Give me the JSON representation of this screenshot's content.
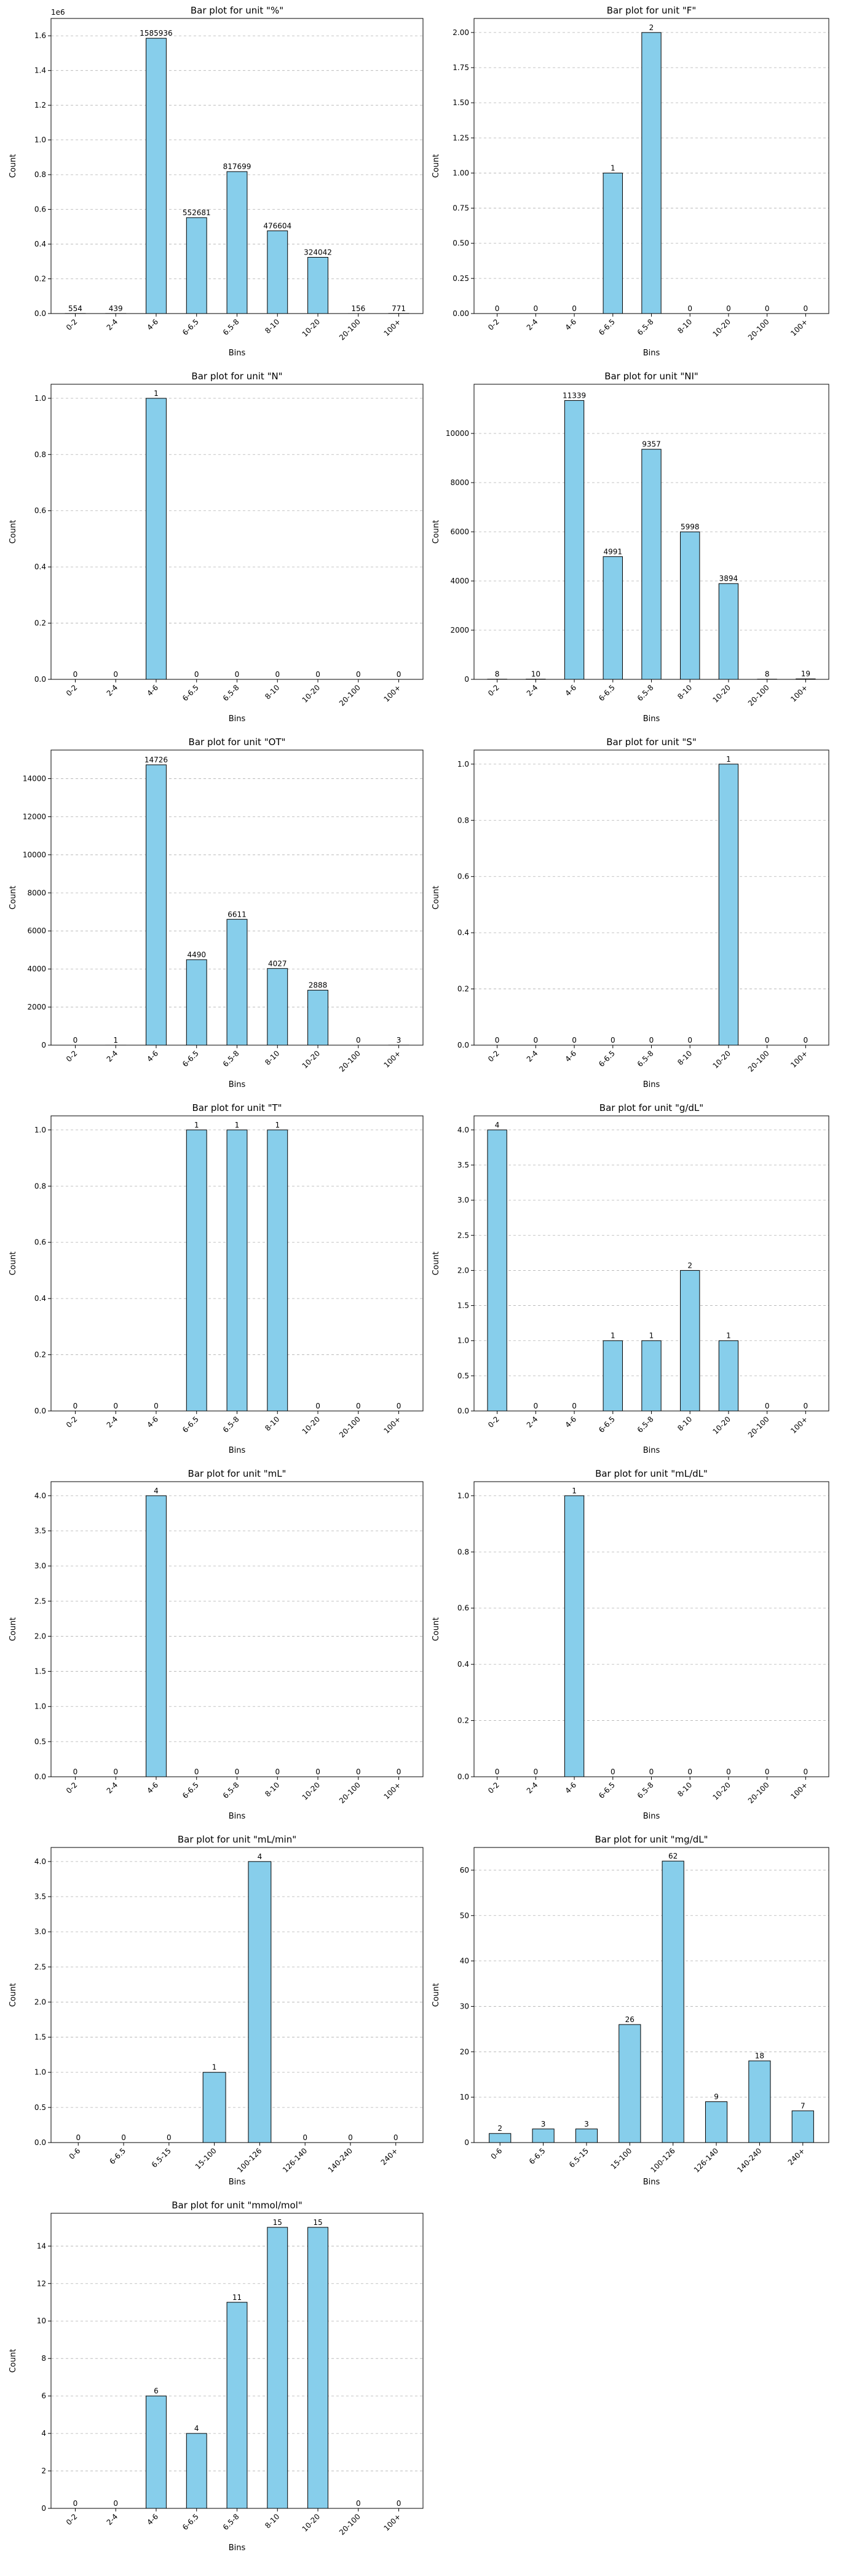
{
  "figure": {
    "charts": [
      {
        "type": "bar",
        "title": "Bar plot for unit \"%\"",
        "xlabel": "Bins",
        "ylabel": "Count",
        "categories": [
          "0-2",
          "2-4",
          "4-6",
          "6-6.5",
          "6.5-8",
          "8-10",
          "10-20",
          "20-100",
          "100+"
        ],
        "values": [
          554,
          439,
          1585936,
          552681,
          817699,
          476604,
          324042,
          156,
          771
        ],
        "ylim": [
          0,
          1700000
        ],
        "yticks": [
          0,
          200000,
          400000,
          600000,
          800000,
          1000000,
          1200000,
          1400000,
          1600000
        ],
        "ytick_labels": [
          "0.0",
          "0.2",
          "0.4",
          "0.6",
          "0.8",
          "1.0",
          "1.2",
          "1.4",
          "1.6"
        ],
        "offset_label": "1e6",
        "grid": "horizontal dashed",
        "legend": "none"
      },
      {
        "type": "bar",
        "title": "Bar plot for unit \"F\"",
        "xlabel": "Bins",
        "ylabel": "Count",
        "categories": [
          "0-2",
          "2-4",
          "4-6",
          "6-6.5",
          "6.5-8",
          "8-10",
          "10-20",
          "20-100",
          "100+"
        ],
        "values": [
          0,
          0,
          0,
          1,
          2,
          0,
          0,
          0,
          0
        ],
        "ylim": [
          0,
          2.1
        ],
        "yticks": [
          0,
          0.25,
          0.5,
          0.75,
          1,
          1.25,
          1.5,
          1.75,
          2
        ],
        "ytick_labels": [
          "0.00",
          "0.25",
          "0.50",
          "0.75",
          "1.00",
          "1.25",
          "1.50",
          "1.75",
          "2.00"
        ],
        "grid": "horizontal dashed",
        "legend": "none"
      },
      {
        "type": "bar",
        "title": "Bar plot for unit \"N\"",
        "xlabel": "Bins",
        "ylabel": "Count",
        "categories": [
          "0-2",
          "2-4",
          "4-6",
          "6-6.5",
          "6.5-8",
          "8-10",
          "10-20",
          "20-100",
          "100+"
        ],
        "values": [
          0,
          0,
          1,
          0,
          0,
          0,
          0,
          0,
          0
        ],
        "ylim": [
          0,
          1.05
        ],
        "yticks": [
          0,
          0.2,
          0.4,
          0.6,
          0.8,
          1
        ],
        "ytick_labels": [
          "0.0",
          "0.2",
          "0.4",
          "0.6",
          "0.8",
          "1.0"
        ],
        "grid": "horizontal dashed",
        "legend": "none"
      },
      {
        "type": "bar",
        "title": "Bar plot for unit \"NI\"",
        "xlabel": "Bins",
        "ylabel": "Count",
        "categories": [
          "0-2",
          "2-4",
          "4-6",
          "6-6.5",
          "6.5-8",
          "8-10",
          "10-20",
          "20-100",
          "100+"
        ],
        "values": [
          8,
          10,
          11339,
          4991,
          9357,
          5998,
          3894,
          8,
          19
        ],
        "ylim": [
          0,
          12000
        ],
        "yticks": [
          0,
          2000,
          4000,
          6000,
          8000,
          10000
        ],
        "ytick_labels": [
          "0",
          "2000",
          "4000",
          "6000",
          "8000",
          "10000"
        ],
        "grid": "horizontal dashed",
        "legend": "none"
      },
      {
        "type": "bar",
        "title": "Bar plot for unit \"OT\"",
        "xlabel": "Bins",
        "ylabel": "Count",
        "categories": [
          "0-2",
          "2-4",
          "4-6",
          "6-6.5",
          "6.5-8",
          "8-10",
          "10-20",
          "20-100",
          "100+"
        ],
        "values": [
          0,
          1,
          14726,
          4490,
          6611,
          4027,
          2888,
          0,
          3
        ],
        "ylim": [
          0,
          15500
        ],
        "yticks": [
          0,
          2000,
          4000,
          6000,
          8000,
          10000,
          12000,
          14000
        ],
        "ytick_labels": [
          "0",
          "2000",
          "4000",
          "6000",
          "8000",
          "10000",
          "12000",
          "14000"
        ],
        "grid": "horizontal dashed",
        "legend": "none"
      },
      {
        "type": "bar",
        "title": "Bar plot for unit \"S\"",
        "xlabel": "Bins",
        "ylabel": "Count",
        "categories": [
          "0-2",
          "2-4",
          "4-6",
          "6-6.5",
          "6.5-8",
          "8-10",
          "10-20",
          "20-100",
          "100+"
        ],
        "values": [
          0,
          0,
          0,
          0,
          0,
          0,
          1,
          0,
          0
        ],
        "ylim": [
          0,
          1.05
        ],
        "yticks": [
          0,
          0.2,
          0.4,
          0.6,
          0.8,
          1
        ],
        "ytick_labels": [
          "0.0",
          "0.2",
          "0.4",
          "0.6",
          "0.8",
          "1.0"
        ],
        "grid": "horizontal dashed",
        "legend": "none"
      },
      {
        "type": "bar",
        "title": "Bar plot for unit \"T\"",
        "xlabel": "Bins",
        "ylabel": "Count",
        "categories": [
          "0-2",
          "2-4",
          "4-6",
          "6-6.5",
          "6.5-8",
          "8-10",
          "10-20",
          "20-100",
          "100+"
        ],
        "values": [
          0,
          0,
          0,
          1,
          1,
          1,
          0,
          0,
          0
        ],
        "ylim": [
          0,
          1.05
        ],
        "yticks": [
          0,
          0.2,
          0.4,
          0.6,
          0.8,
          1
        ],
        "ytick_labels": [
          "0.0",
          "0.2",
          "0.4",
          "0.6",
          "0.8",
          "1.0"
        ],
        "grid": "horizontal dashed",
        "legend": "none"
      },
      {
        "type": "bar",
        "title": "Bar plot for unit \"g/dL\"",
        "xlabel": "Bins",
        "ylabel": "Count",
        "categories": [
          "0-2",
          "2-4",
          "4-6",
          "6-6.5",
          "6.5-8",
          "8-10",
          "10-20",
          "20-100",
          "100+"
        ],
        "values": [
          4,
          0,
          0,
          1,
          1,
          2,
          1,
          0,
          0
        ],
        "ylim": [
          0,
          4.2
        ],
        "yticks": [
          0,
          0.5,
          1,
          1.5,
          2,
          2.5,
          3,
          3.5,
          4
        ],
        "ytick_labels": [
          "0.0",
          "0.5",
          "1.0",
          "1.5",
          "2.0",
          "2.5",
          "3.0",
          "3.5",
          "4.0"
        ],
        "grid": "horizontal dashed",
        "legend": "none"
      },
      {
        "type": "bar",
        "title": "Bar plot for unit \"mL\"",
        "xlabel": "Bins",
        "ylabel": "Count",
        "categories": [
          "0-2",
          "2-4",
          "4-6",
          "6-6.5",
          "6.5-8",
          "8-10",
          "10-20",
          "20-100",
          "100+"
        ],
        "values": [
          0,
          0,
          4,
          0,
          0,
          0,
          0,
          0,
          0
        ],
        "ylim": [
          0,
          4.2
        ],
        "yticks": [
          0,
          0.5,
          1,
          1.5,
          2,
          2.5,
          3,
          3.5,
          4
        ],
        "ytick_labels": [
          "0.0",
          "0.5",
          "1.0",
          "1.5",
          "2.0",
          "2.5",
          "3.0",
          "3.5",
          "4.0"
        ],
        "grid": "horizontal dashed",
        "legend": "none"
      },
      {
        "type": "bar",
        "title": "Bar plot for unit \"mL/dL\"",
        "xlabel": "Bins",
        "ylabel": "Count",
        "categories": [
          "0-2",
          "2-4",
          "4-6",
          "6-6.5",
          "6.5-8",
          "8-10",
          "10-20",
          "20-100",
          "100+"
        ],
        "values": [
          0,
          0,
          1,
          0,
          0,
          0,
          0,
          0,
          0
        ],
        "ylim": [
          0,
          1.05
        ],
        "yticks": [
          0,
          0.2,
          0.4,
          0.6,
          0.8,
          1
        ],
        "ytick_labels": [
          "0.0",
          "0.2",
          "0.4",
          "0.6",
          "0.8",
          "1.0"
        ],
        "grid": "horizontal dashed",
        "legend": "none"
      },
      {
        "type": "bar",
        "title": "Bar plot for unit \"mL/min\"",
        "xlabel": "Bins",
        "ylabel": "Count",
        "categories": [
          "0-6",
          "6-6.5",
          "6.5-15",
          "15-100",
          "100-126",
          "126-140",
          "140-240",
          "240+"
        ],
        "values": [
          0,
          0,
          0,
          1,
          4,
          0,
          0,
          0
        ],
        "ylim": [
          0,
          4.2
        ],
        "yticks": [
          0,
          0.5,
          1,
          1.5,
          2,
          2.5,
          3,
          3.5,
          4
        ],
        "ytick_labels": [
          "0.0",
          "0.5",
          "1.0",
          "1.5",
          "2.0",
          "2.5",
          "3.0",
          "3.5",
          "4.0"
        ],
        "grid": "horizontal dashed",
        "legend": "none"
      },
      {
        "type": "bar",
        "title": "Bar plot for unit \"mg/dL\"",
        "xlabel": "Bins",
        "ylabel": "Count",
        "categories": [
          "0-6",
          "6-6.5",
          "6.5-15",
          "15-100",
          "100-126",
          "126-140",
          "140-240",
          "240+"
        ],
        "values": [
          2,
          3,
          3,
          26,
          62,
          9,
          18,
          7
        ],
        "ylim": [
          0,
          65
        ],
        "yticks": [
          0,
          10,
          20,
          30,
          40,
          50,
          60
        ],
        "ytick_labels": [
          "0",
          "10",
          "20",
          "30",
          "40",
          "50",
          "60"
        ],
        "grid": "horizontal dashed",
        "legend": "none"
      },
      {
        "type": "bar",
        "title": "Bar plot for unit \"mmol/mol\"",
        "xlabel": "Bins",
        "ylabel": "Count",
        "categories": [
          "0-2",
          "2-4",
          "4-6",
          "6-6.5",
          "6.5-8",
          "8-10",
          "10-20",
          "20-100",
          "100+"
        ],
        "values": [
          0,
          0,
          6,
          4,
          11,
          15,
          15,
          0,
          0
        ],
        "ylim": [
          0,
          15.75
        ],
        "yticks": [
          0,
          2,
          4,
          6,
          8,
          10,
          12,
          14
        ],
        "ytick_labels": [
          "0",
          "2",
          "4",
          "6",
          "8",
          "10",
          "12",
          "14"
        ],
        "grid": "horizontal dashed",
        "legend": "none"
      }
    ]
  },
  "chart_data": [
    {
      "type": "bar",
      "title": "Bar plot for unit \"%\"",
      "xlabel": "Bins",
      "ylabel": "Count",
      "categories": [
        "0-2",
        "2-4",
        "4-6",
        "6-6.5",
        "6.5-8",
        "8-10",
        "10-20",
        "20-100",
        "100+"
      ],
      "values": [
        554,
        439,
        1585936,
        552681,
        817699,
        476604,
        324042,
        156,
        771
      ],
      "ylim": [
        0,
        1700000
      ]
    },
    {
      "type": "bar",
      "title": "Bar plot for unit \"F\"",
      "xlabel": "Bins",
      "ylabel": "Count",
      "categories": [
        "0-2",
        "2-4",
        "4-6",
        "6-6.5",
        "6.5-8",
        "8-10",
        "10-20",
        "20-100",
        "100+"
      ],
      "values": [
        0,
        0,
        0,
        1,
        2,
        0,
        0,
        0,
        0
      ],
      "ylim": [
        0,
        2.1
      ]
    },
    {
      "type": "bar",
      "title": "Bar plot for unit \"N\"",
      "xlabel": "Bins",
      "ylabel": "Count",
      "categories": [
        "0-2",
        "2-4",
        "4-6",
        "6-6.5",
        "6.5-8",
        "8-10",
        "10-20",
        "20-100",
        "100+"
      ],
      "values": [
        0,
        0,
        1,
        0,
        0,
        0,
        0,
        0,
        0
      ],
      "ylim": [
        0,
        1.05
      ]
    },
    {
      "type": "bar",
      "title": "Bar plot for unit \"NI\"",
      "xlabel": "Bins",
      "ylabel": "Count",
      "categories": [
        "0-2",
        "2-4",
        "4-6",
        "6-6.5",
        "6.5-8",
        "8-10",
        "10-20",
        "20-100",
        "100+"
      ],
      "values": [
        8,
        10,
        11339,
        4991,
        9357,
        5998,
        3894,
        8,
        19
      ],
      "ylim": [
        0,
        12000
      ]
    },
    {
      "type": "bar",
      "title": "Bar plot for unit \"OT\"",
      "xlabel": "Bins",
      "ylabel": "Count",
      "categories": [
        "0-2",
        "2-4",
        "4-6",
        "6-6.5",
        "6.5-8",
        "8-10",
        "10-20",
        "20-100",
        "100+"
      ],
      "values": [
        0,
        1,
        14726,
        4490,
        6611,
        4027,
        2888,
        0,
        3
      ],
      "ylim": [
        0,
        15500
      ]
    },
    {
      "type": "bar",
      "title": "Bar plot for unit \"S\"",
      "xlabel": "Bins",
      "ylabel": "Count",
      "categories": [
        "0-2",
        "2-4",
        "4-6",
        "6-6.5",
        "6.5-8",
        "8-10",
        "10-20",
        "20-100",
        "100+"
      ],
      "values": [
        0,
        0,
        0,
        0,
        0,
        0,
        1,
        0,
        0
      ],
      "ylim": [
        0,
        1.05
      ]
    },
    {
      "type": "bar",
      "title": "Bar plot for unit \"T\"",
      "xlabel": "Bins",
      "ylabel": "Count",
      "categories": [
        "0-2",
        "2-4",
        "4-6",
        "6-6.5",
        "6.5-8",
        "8-10",
        "10-20",
        "20-100",
        "100+"
      ],
      "values": [
        0,
        0,
        0,
        1,
        1,
        1,
        0,
        0,
        0
      ],
      "ylim": [
        0,
        1.05
      ]
    },
    {
      "type": "bar",
      "title": "Bar plot for unit \"g/dL\"",
      "xlabel": "Bins",
      "ylabel": "Count",
      "categories": [
        "0-2",
        "2-4",
        "4-6",
        "6-6.5",
        "6.5-8",
        "8-10",
        "10-20",
        "20-100",
        "100+"
      ],
      "values": [
        4,
        0,
        0,
        1,
        1,
        2,
        1,
        0,
        0
      ],
      "ylim": [
        0,
        4.2
      ]
    },
    {
      "type": "bar",
      "title": "Bar plot for unit \"mL\"",
      "xlabel": "Bins",
      "ylabel": "Count",
      "categories": [
        "0-2",
        "2-4",
        "4-6",
        "6-6.5",
        "6.5-8",
        "8-10",
        "10-20",
        "20-100",
        "100+"
      ],
      "values": [
        0,
        0,
        4,
        0,
        0,
        0,
        0,
        0,
        0
      ],
      "ylim": [
        0,
        4.2
      ]
    },
    {
      "type": "bar",
      "title": "Bar plot for unit \"mL/dL\"",
      "xlabel": "Bins",
      "ylabel": "Count",
      "categories": [
        "0-2",
        "2-4",
        "4-6",
        "6-6.5",
        "6.5-8",
        "8-10",
        "10-20",
        "20-100",
        "100+"
      ],
      "values": [
        0,
        0,
        1,
        0,
        0,
        0,
        0,
        0,
        0
      ],
      "ylim": [
        0,
        1.05
      ]
    },
    {
      "type": "bar",
      "title": "Bar plot for unit \"mL/min\"",
      "xlabel": "Bins",
      "ylabel": "Count",
      "categories": [
        "0-6",
        "6-6.5",
        "6.5-15",
        "15-100",
        "100-126",
        "126-140",
        "140-240",
        "240+"
      ],
      "values": [
        0,
        0,
        0,
        1,
        4,
        0,
        0,
        0
      ],
      "ylim": [
        0,
        4.2
      ]
    },
    {
      "type": "bar",
      "title": "Bar plot for unit \"mg/dL\"",
      "xlabel": "Bins",
      "ylabel": "Count",
      "categories": [
        "0-6",
        "6-6.5",
        "6.5-15",
        "15-100",
        "100-126",
        "126-140",
        "140-240",
        "240+"
      ],
      "values": [
        2,
        3,
        3,
        26,
        62,
        9,
        18,
        7
      ],
      "ylim": [
        0,
        65
      ]
    },
    {
      "type": "bar",
      "title": "Bar plot for unit \"mmol/mol\"",
      "xlabel": "Bins",
      "ylabel": "Count",
      "categories": [
        "0-2",
        "2-4",
        "4-6",
        "6-6.5",
        "6.5-8",
        "8-10",
        "10-20",
        "20-100",
        "100+"
      ],
      "values": [
        0,
        0,
        6,
        4,
        11,
        15,
        15,
        0,
        0
      ],
      "ylim": [
        0,
        15.75
      ]
    }
  ],
  "colors": {
    "bar_fill": "#87ceeb",
    "bar_edge": "#000000",
    "grid": "#b0b0b0",
    "axis": "#000000"
  }
}
